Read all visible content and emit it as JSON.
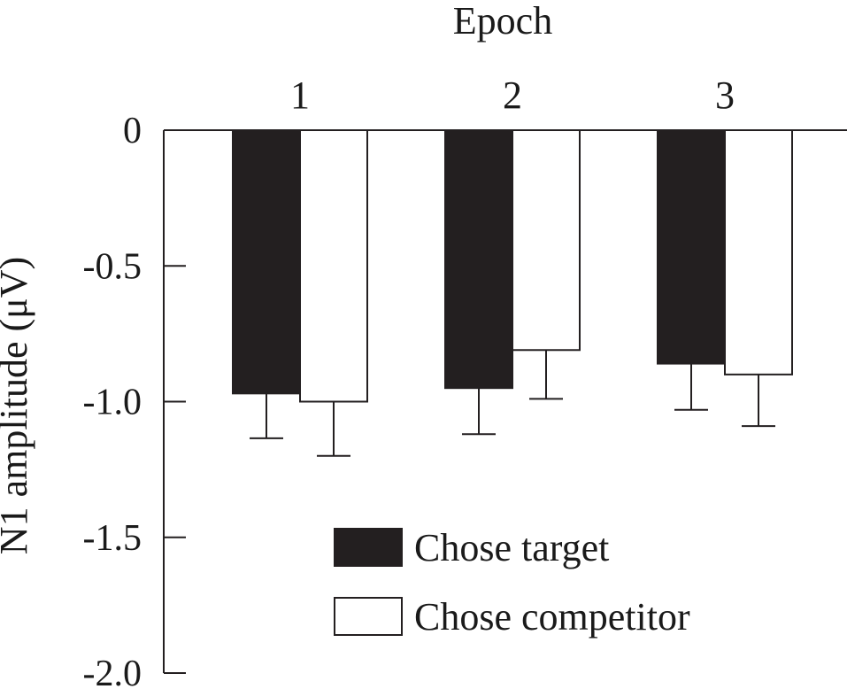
{
  "chart_data": {
    "type": "bar",
    "title": "Epoch",
    "xlabel": "",
    "ylabel": "N1 amplitude (μV)",
    "categories": [
      "1",
      "2",
      "3"
    ],
    "ylim": [
      -2.0,
      0
    ],
    "yticks": [
      {
        "value": 0,
        "label": "0"
      },
      {
        "value": -0.5,
        "label": "-0.5"
      },
      {
        "value": -1.0,
        "label": "-1.0"
      },
      {
        "value": -1.5,
        "label": "-1.5"
      },
      {
        "value": -2.0,
        "label": "-2.0"
      }
    ],
    "series": [
      {
        "name": "Chose target",
        "color": "#231f20",
        "values": [
          -0.97,
          -0.95,
          -0.86
        ],
        "errors": [
          0.165,
          0.17,
          0.17
        ]
      },
      {
        "name": "Chose competitor",
        "color": "#ffffff",
        "values": [
          -1.0,
          -0.81,
          -0.9
        ],
        "errors": [
          0.2,
          0.18,
          0.19
        ]
      }
    ],
    "legend_position": "bottom-right",
    "grid": false
  }
}
